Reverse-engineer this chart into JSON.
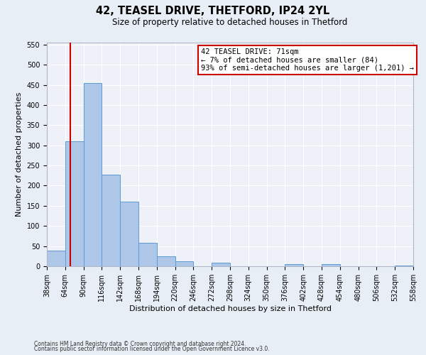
{
  "title": "42, TEASEL DRIVE, THETFORD, IP24 2YL",
  "subtitle": "Size of property relative to detached houses in Thetford",
  "xlabel": "Distribution of detached houses by size in Thetford",
  "ylabel": "Number of detached properties",
  "bin_edges": [
    38,
    64,
    90,
    116,
    142,
    168,
    194,
    220,
    246,
    272,
    298,
    324,
    350,
    376,
    402,
    428,
    454,
    480,
    506,
    532,
    558
  ],
  "counts": [
    38,
    310,
    455,
    228,
    160,
    58,
    25,
    12,
    0,
    8,
    0,
    0,
    0,
    5,
    0,
    5,
    0,
    0,
    0,
    2
  ],
  "bar_color": "#aec6e8",
  "bar_edge_color": "#5b9bd5",
  "vline_x": 71,
  "vline_color": "#cc0000",
  "annotation_text": "42 TEASEL DRIVE: 71sqm\n← 7% of detached houses are smaller (84)\n93% of semi-detached houses are larger (1,201) →",
  "annotation_box_color": "#ffffff",
  "annotation_box_edge_color": "#cc0000",
  "ylim": [
    0,
    555
  ],
  "yticks": [
    0,
    50,
    100,
    150,
    200,
    250,
    300,
    350,
    400,
    450,
    500,
    550
  ],
  "footer_line1": "Contains HM Land Registry data © Crown copyright and database right 2024.",
  "footer_line2": "Contains public sector information licensed under the Open Government Licence v3.0.",
  "bg_color": "#e8eef5",
  "plot_bg_color": "#eef2f8",
  "title_fontsize": 10.5,
  "subtitle_fontsize": 8.5,
  "xlabel_fontsize": 8,
  "ylabel_fontsize": 8,
  "tick_fontsize": 7,
  "annotation_fontsize": 7.5,
  "footer_fontsize": 5.5
}
